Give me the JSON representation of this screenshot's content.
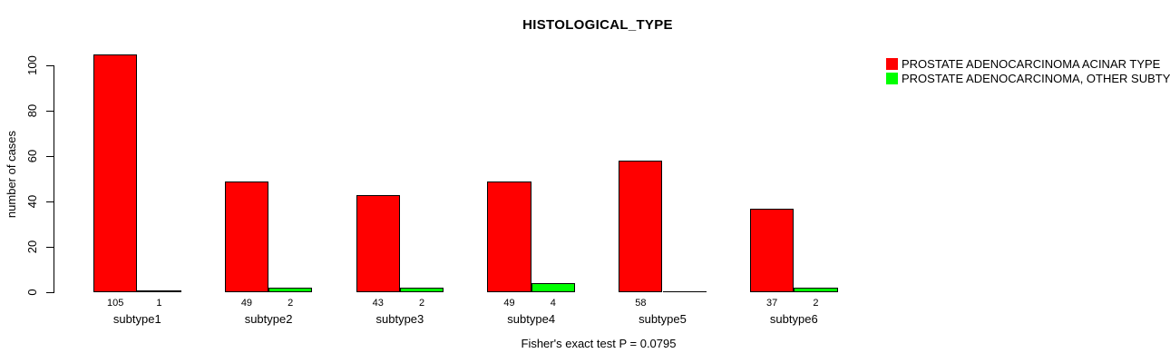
{
  "chart_data": {
    "type": "bar",
    "title": "HISTOLOGICAL_TYPE",
    "ylabel": "number of cases",
    "xlabel": "",
    "categories": [
      "subtype1",
      "subtype2",
      "subtype3",
      "subtype4",
      "subtype5",
      "subtype6"
    ],
    "series": [
      {
        "name": "PROSTATE ADENOCARCINOMA ACINAR TYPE",
        "color": "#ff0000",
        "values": [
          105,
          49,
          43,
          49,
          58,
          37
        ]
      },
      {
        "name": "PROSTATE ADENOCARCINOMA, OTHER SUBTYPE",
        "color": "#00ff00",
        "values": [
          1,
          2,
          2,
          4,
          0,
          2
        ]
      }
    ],
    "yticks": [
      0,
      20,
      40,
      60,
      80,
      100
    ],
    "ylim": [
      0,
      110
    ],
    "grid": false,
    "legend_position": "topright",
    "bar_value_labels": true,
    "note": "Fisher's exact test P = 0.0795"
  }
}
